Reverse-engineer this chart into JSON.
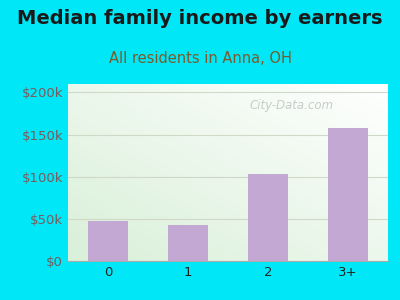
{
  "categories": [
    "0",
    "1",
    "2",
    "3+"
  ],
  "values": [
    48000,
    43000,
    103000,
    158000
  ],
  "bar_color": "#c4a8d4",
  "title": "Median family income by earners",
  "subtitle": "All residents in Anna, OH",
  "title_color": "#1a1a1a",
  "subtitle_color": "#7a5a2a",
  "ytick_color": "#7a5a5a",
  "xtick_color": "#222222",
  "background_outer": "#00e8f8",
  "ylim": [
    0,
    210000
  ],
  "yticks": [
    0,
    50000,
    100000,
    150000,
    200000
  ],
  "ytick_labels": [
    "$0",
    "$50k",
    "$100k",
    "$150k",
    "$200k"
  ],
  "watermark": "City-Data.com",
  "title_fontsize": 14,
  "subtitle_fontsize": 10.5,
  "tick_fontsize": 9.5,
  "plot_bg_top": "#f5faf0",
  "plot_bg_bottom": "#ffffff",
  "grid_color": "#d0d8c8"
}
